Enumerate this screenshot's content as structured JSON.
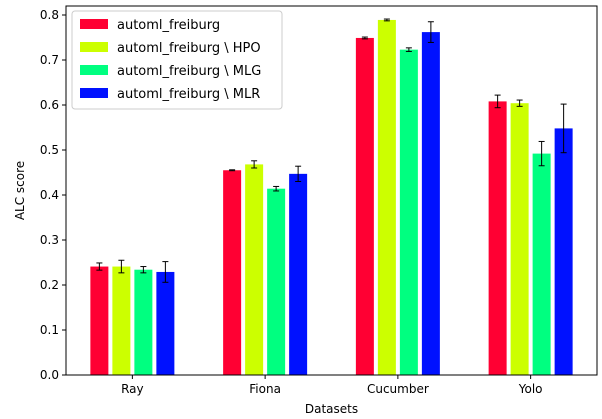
{
  "chart_data": {
    "type": "bar",
    "categories": [
      "Ray",
      "Fiona",
      "Cucumber",
      "Yolo"
    ],
    "series": [
      {
        "name": "automl_freiburg",
        "color": "#ff0033",
        "values": [
          0.241,
          0.455,
          0.749,
          0.608
        ],
        "errors": [
          0.008,
          0.001,
          0.002,
          0.014
        ]
      },
      {
        "name": "automl_freiburg \\ HPO",
        "color": "#ccff00",
        "values": [
          0.241,
          0.468,
          0.789,
          0.604
        ],
        "errors": [
          0.014,
          0.008,
          0.002,
          0.007
        ]
      },
      {
        "name": "automl_freiburg \\ MLG",
        "color": "#00ff80",
        "values": [
          0.234,
          0.414,
          0.723,
          0.492
        ],
        "errors": [
          0.007,
          0.005,
          0.004,
          0.027
        ]
      },
      {
        "name": "automl_freiburg \\ MLR",
        "color": "#0011ff",
        "values": [
          0.229,
          0.447,
          0.762,
          0.548
        ],
        "errors": [
          0.023,
          0.017,
          0.023,
          0.054
        ]
      }
    ],
    "ylim": [
      0,
      0.82
    ],
    "yticks": [
      "0.0",
      "0.1",
      "0.2",
      "0.3",
      "0.4",
      "0.5",
      "0.6",
      "0.7",
      "0.8"
    ],
    "xlabel": "Datasets",
    "ylabel": "ALC score",
    "title": "",
    "grid": false,
    "legend_position": "top-left"
  }
}
